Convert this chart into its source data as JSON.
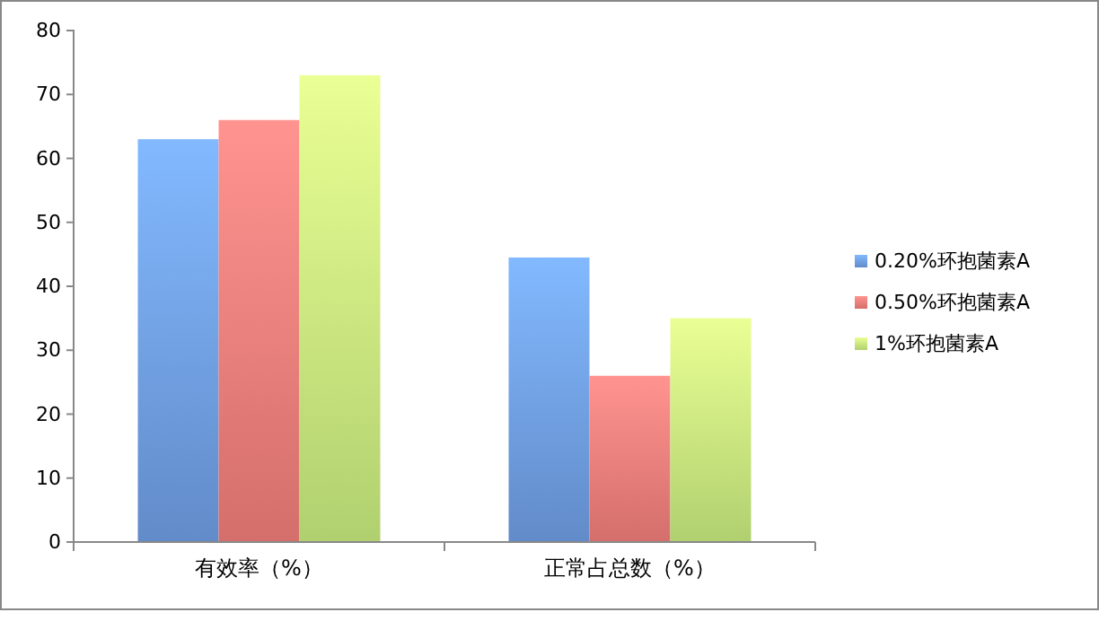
{
  "chart_data": {
    "type": "bar",
    "categories": [
      "有效率（%）",
      "正常占总数（%）"
    ],
    "series": [
      {
        "name": "0.20%环抱菌素A",
        "color": "#6d9be0",
        "values": [
          63,
          44.5
        ]
      },
      {
        "name": "0.50%环抱菌素A",
        "color": "#ec7b78",
        "values": [
          66,
          26
        ]
      },
      {
        "name": "1%环抱菌素A",
        "color": "#c4e87c",
        "values": [
          73,
          35
        ]
      }
    ],
    "ylim": [
      0,
      80
    ],
    "yticks": [
      0,
      10,
      20,
      30,
      40,
      50,
      60,
      70,
      80
    ],
    "grid": false,
    "legend": "right"
  }
}
